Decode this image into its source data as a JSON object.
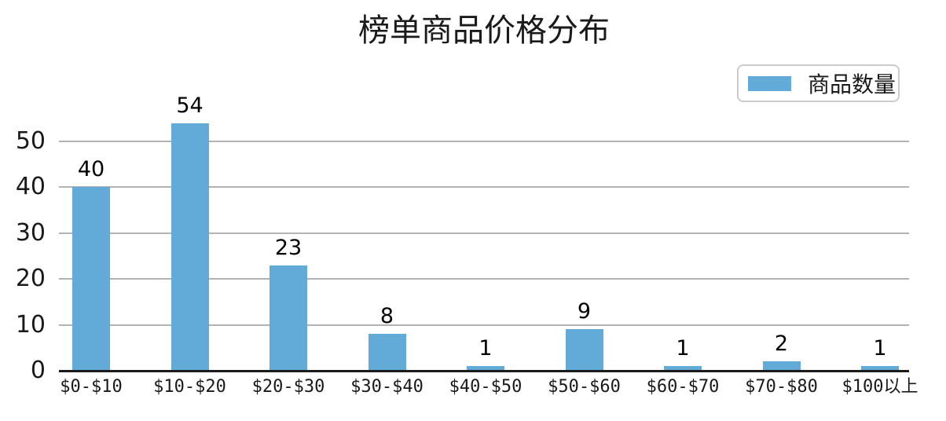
{
  "chart_data": {
    "type": "bar",
    "title": "榜单商品价格分布",
    "categories": [
      "$0-$10",
      "$10-$20",
      "$20-$30",
      "$30-$40",
      "$40-$50",
      "$50-$60",
      "$60-$70",
      "$70-$80",
      "$100以上"
    ],
    "values": [
      40,
      54,
      23,
      8,
      1,
      9,
      1,
      2,
      1
    ],
    "series_name": "商品数量",
    "xlabel": "",
    "ylabel": "",
    "yticks": [
      0,
      10,
      20,
      30,
      40,
      50
    ],
    "ylim": [
      0,
      57
    ],
    "grid": "horizontal",
    "legend_position": "top-right",
    "bar_color": "#62aad7",
    "grid_color": "#b3b3b3",
    "axis_color": "#1a1a1a",
    "text_color": "#1a1a1a"
  }
}
